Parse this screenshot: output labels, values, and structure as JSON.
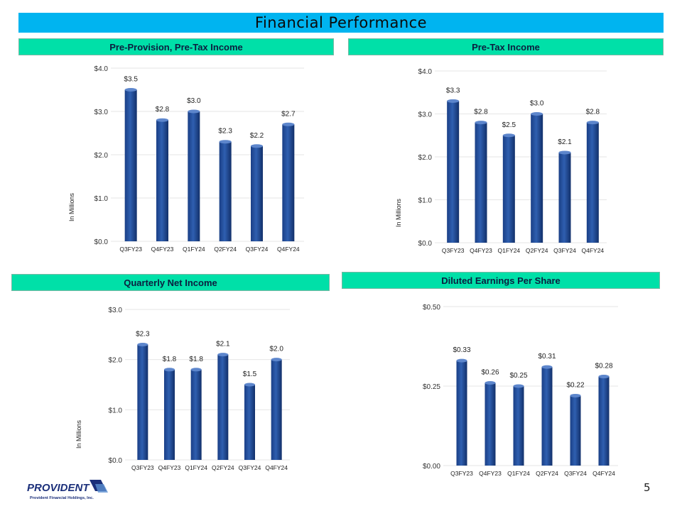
{
  "slide": {
    "title": "Financial Performance",
    "page_number": "5"
  },
  "logo": {
    "brand": "PROVIDENT",
    "subtitle": "Provident Financial Holdings, Inc."
  },
  "colors": {
    "title_bar": "#00b4f0",
    "panel_header": "#00e0a8",
    "bar": "#2f5fb0"
  },
  "chart_data": [
    {
      "type": "bar",
      "title": "Pre-Provision, Pre-Tax Income",
      "ylabel": "In Millions",
      "xlabel": "",
      "categories": [
        "Q3FY23",
        "Q4FY23",
        "Q1FY24",
        "Q2FY24",
        "Q3FY24",
        "Q4FY24"
      ],
      "values": [
        3.5,
        2.8,
        3.0,
        2.3,
        2.2,
        2.7
      ],
      "data_labels": [
        "$3.5",
        "$2.8",
        "$3.0",
        "$2.3",
        "$2.2",
        "$2.7"
      ],
      "ylim": [
        0,
        4.0
      ],
      "yticks": [
        0,
        1,
        2,
        3,
        4
      ],
      "ytick_labels": [
        "$0.0",
        "$1.0",
        "$2.0",
        "$3.0",
        "$4.0"
      ],
      "grid": true
    },
    {
      "type": "bar",
      "title": "Pre-Tax Income",
      "ylabel": "In Millions",
      "xlabel": "",
      "categories": [
        "Q3FY23",
        "Q4FY23",
        "Q1FY24",
        "Q2FY24",
        "Q3FY24",
        "Q4FY24"
      ],
      "values": [
        3.3,
        2.8,
        2.5,
        3.0,
        2.1,
        2.8
      ],
      "data_labels": [
        "$3.3",
        "$2.8",
        "$2.5",
        "$3.0",
        "$2.1",
        "$2.8"
      ],
      "ylim": [
        0,
        4.0
      ],
      "yticks": [
        0,
        1,
        2,
        3,
        4
      ],
      "ytick_labels": [
        "$0.0",
        "$1.0",
        "$2.0",
        "$3.0",
        "$4.0"
      ],
      "grid": true
    },
    {
      "type": "bar",
      "title": "Quarterly Net Income",
      "ylabel": "In Millions",
      "xlabel": "",
      "categories": [
        "Q3FY23",
        "Q4FY23",
        "Q1FY24",
        "Q2FY24",
        "Q3FY24",
        "Q4FY24"
      ],
      "values": [
        2.3,
        1.8,
        1.8,
        2.1,
        1.5,
        2.0
      ],
      "data_labels": [
        "$2.3",
        "$1.8",
        "$1.8",
        "$2.1",
        "$1.5",
        "$2.0"
      ],
      "ylim": [
        0,
        3.0
      ],
      "yticks": [
        0,
        1,
        2,
        3
      ],
      "ytick_labels": [
        "$0.0",
        "$1.0",
        "$2.0",
        "$3.0"
      ],
      "grid": true
    },
    {
      "type": "bar",
      "title": "Diluted Earnings Per Share",
      "ylabel": "",
      "xlabel": "",
      "categories": [
        "Q3FY23",
        "Q4FY23",
        "Q1FY24",
        "Q2FY24",
        "Q3FY24",
        "Q4FY24"
      ],
      "values": [
        0.33,
        0.26,
        0.25,
        0.31,
        0.22,
        0.28
      ],
      "data_labels": [
        "$0.33",
        "$0.26",
        "$0.25",
        "$0.31",
        "$0.22",
        "$0.28"
      ],
      "ylim": [
        0,
        0.5
      ],
      "yticks": [
        0,
        0.25,
        0.5
      ],
      "ytick_labels": [
        "$0.00",
        "$0.25",
        "$0.50"
      ],
      "grid": true
    }
  ]
}
